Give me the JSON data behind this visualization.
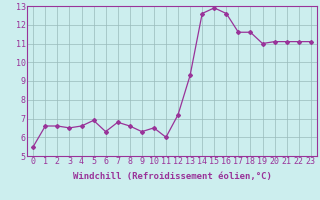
{
  "x": [
    0,
    1,
    2,
    3,
    4,
    5,
    6,
    7,
    8,
    9,
    10,
    11,
    12,
    13,
    14,
    15,
    16,
    17,
    18,
    19,
    20,
    21,
    22,
    23
  ],
  "y": [
    5.5,
    6.6,
    6.6,
    6.5,
    6.6,
    6.9,
    6.3,
    6.8,
    6.6,
    6.3,
    6.5,
    6.0,
    7.2,
    9.3,
    12.6,
    12.9,
    12.6,
    11.6,
    11.6,
    11.0,
    11.1,
    11.1,
    11.1,
    11.1
  ],
  "xlabel": "Windchill (Refroidissement éolien,°C)",
  "ylim": [
    5,
    13
  ],
  "xlim": [
    -0.5,
    23.5
  ],
  "yticks": [
    5,
    6,
    7,
    8,
    9,
    10,
    11,
    12,
    13
  ],
  "xticks": [
    0,
    1,
    2,
    3,
    4,
    5,
    6,
    7,
    8,
    9,
    10,
    11,
    12,
    13,
    14,
    15,
    16,
    17,
    18,
    19,
    20,
    21,
    22,
    23
  ],
  "line_color": "#993399",
  "marker": "D",
  "marker_size": 2.0,
  "bg_color": "#cceeee",
  "grid_color": "#99bbbb",
  "xlabel_fontsize": 6.5,
  "tick_fontsize": 6.0,
  "line_width": 0.9
}
